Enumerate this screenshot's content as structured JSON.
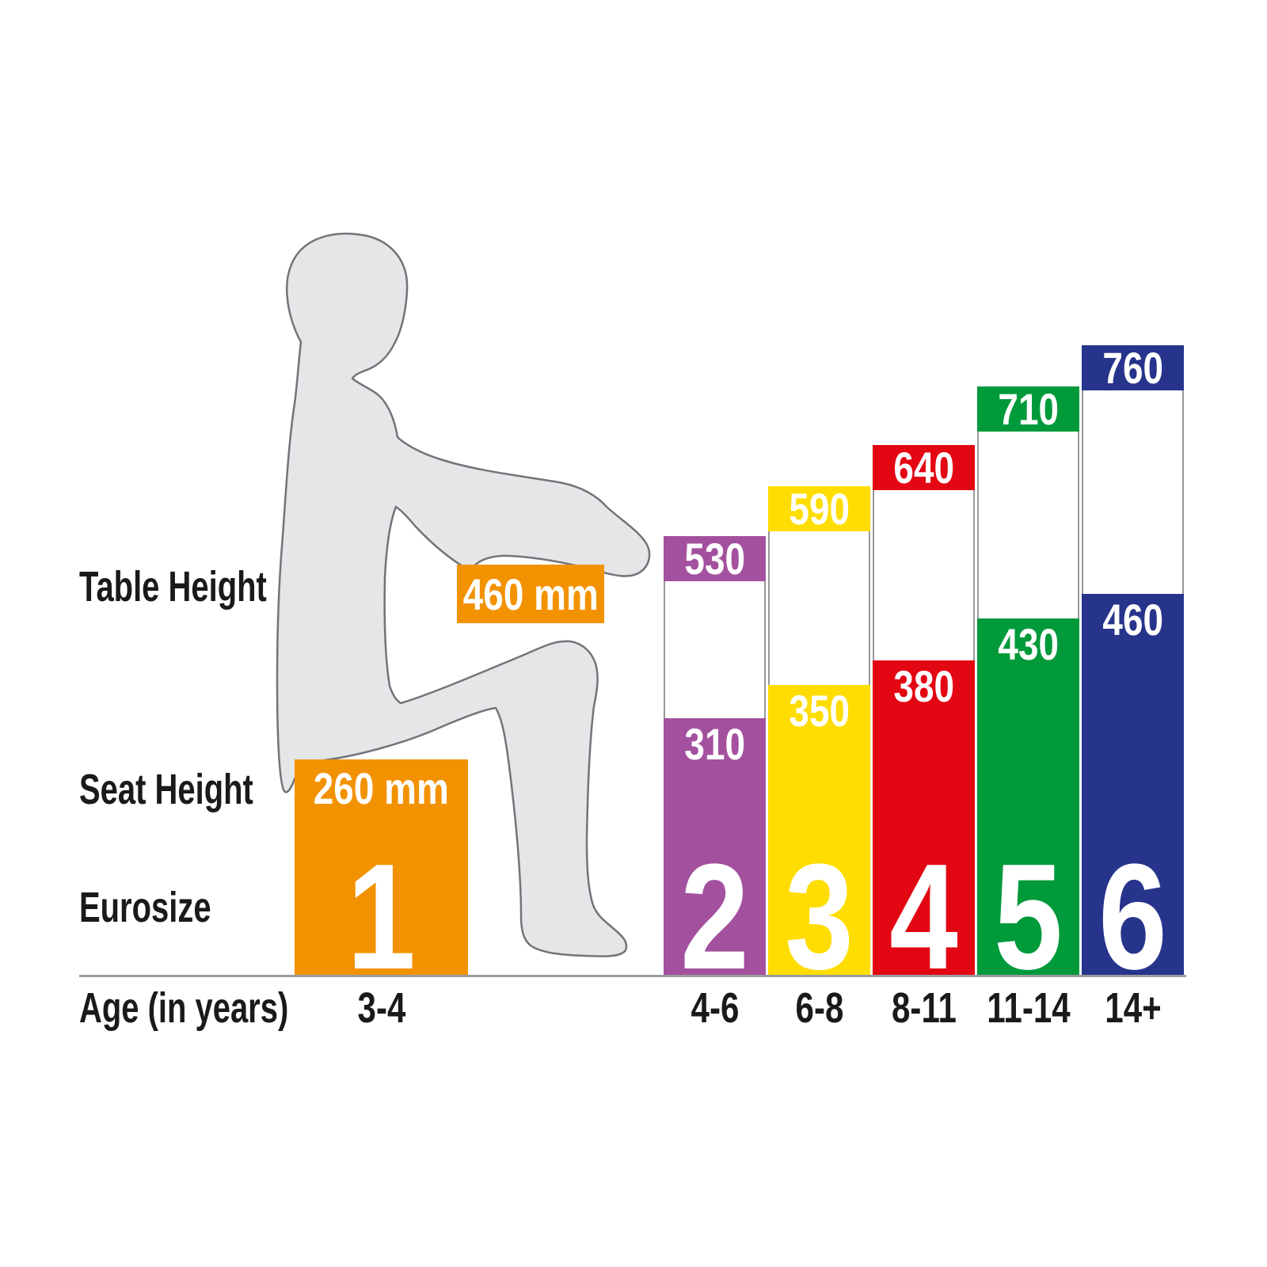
{
  "row_labels": {
    "table_height": "Table Height",
    "seat_height": "Seat Height",
    "eurosize": "Eurosize",
    "age": "Age (in years)"
  },
  "mm_suffix": " mm",
  "colors": {
    "baseline": "#9b9c9e",
    "label_text": "#1a1a1a",
    "value_text": "#ffffff",
    "silhouette_fill": "#e5e6e7",
    "silhouette_outline": "#737479",
    "bar_border": "#97989a"
  },
  "chart_data": {
    "type": "bar",
    "title": "",
    "unit": "mm",
    "categories": [
      "1",
      "2",
      "3",
      "4",
      "5",
      "6"
    ],
    "series": [
      {
        "name": "Table Height",
        "values": [
          460,
          530,
          590,
          640,
          710,
          760
        ]
      },
      {
        "name": "Seat Height",
        "values": [
          260,
          310,
          350,
          380,
          430,
          460
        ]
      }
    ],
    "ages": [
      "3-4",
      "4-6",
      "6-8",
      "8-11",
      "11-14",
      "14+"
    ],
    "bar_colors": [
      "#F39200",
      "#A3519E",
      "#FFDD00",
      "#E30613",
      "#019A3B",
      "#27348B"
    ],
    "size1_value_labels": {
      "table": "460 mm",
      "seat": "260 mm"
    },
    "ylim": [
      0,
      800
    ],
    "grid": false,
    "legend": false
  }
}
